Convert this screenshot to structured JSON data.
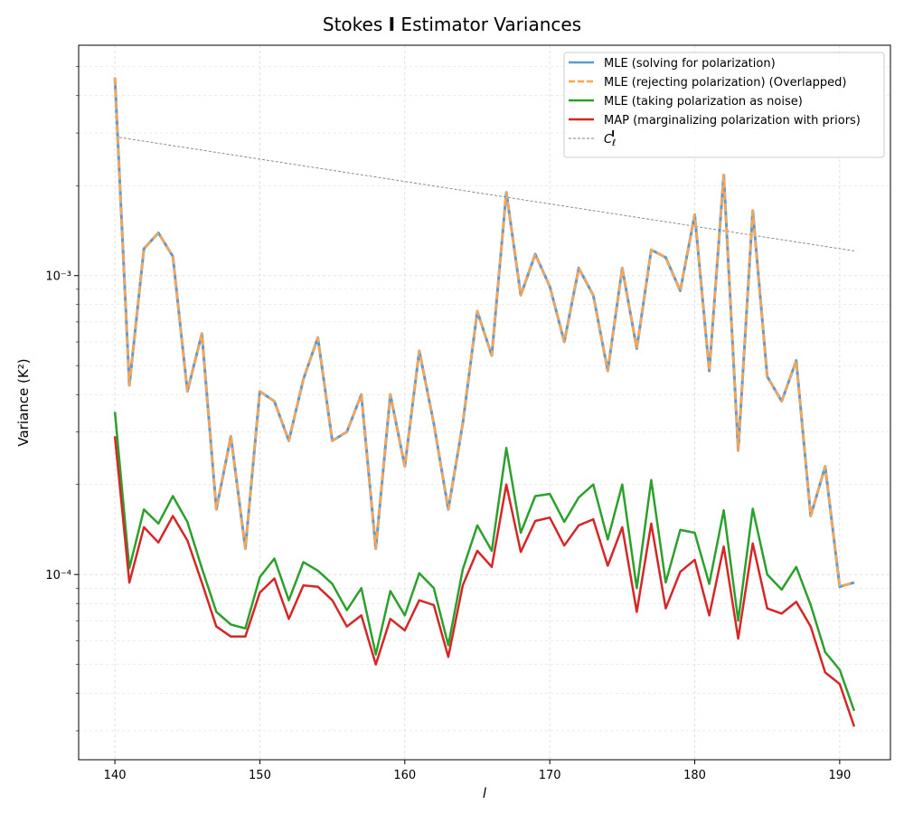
{
  "chart_data": {
    "type": "line",
    "title": "Stokes I Estimator Variances",
    "title_prefix": "Stokes ",
    "title_bold": "I",
    "title_suffix": " Estimator Variances",
    "xlabel": "l",
    "ylabel": "Variance (K²)",
    "xlim": [
      137.5,
      193.5
    ],
    "ylim": [
      2.4e-05,
      0.0059
    ],
    "y_scale": "log",
    "x_ticks": [
      140,
      150,
      160,
      170,
      180,
      190
    ],
    "y_ticks": [
      {
        "value": 0.0001,
        "label": "10⁻⁴"
      },
      {
        "value": 0.001,
        "label": "10⁻³"
      }
    ],
    "grid": true,
    "legend_position": "upper right",
    "x": [
      140,
      141,
      142,
      143,
      144,
      145,
      146,
      147,
      148,
      149,
      150,
      151,
      152,
      153,
      154,
      155,
      156,
      157,
      158,
      159,
      160,
      161,
      162,
      163,
      164,
      165,
      166,
      167,
      168,
      169,
      170,
      171,
      172,
      173,
      174,
      175,
      176,
      177,
      178,
      179,
      180,
      181,
      182,
      183,
      184,
      185,
      186,
      187,
      188,
      189,
      190,
      191
    ],
    "series": [
      {
        "name": "MLE (solving for polarization)",
        "color": "#5b9bd5",
        "dash": "solid",
        "values": [
          0.0046,
          0.00043,
          0.00123,
          0.00139,
          0.00116,
          0.00041,
          0.00064,
          0.000165,
          0.00029,
          0.000122,
          0.00041,
          0.00038,
          0.00028,
          0.00045,
          0.00062,
          0.00028,
          0.0003,
          0.0004,
          0.000122,
          0.0004,
          0.00023,
          0.00056,
          0.00032,
          0.000165,
          0.00032,
          0.00076,
          0.00054,
          0.0019,
          0.00086,
          0.00118,
          0.00092,
          0.0006,
          0.00106,
          0.00086,
          0.00048,
          0.00106,
          0.00057,
          0.00122,
          0.00115,
          0.00089,
          0.0016,
          0.00048,
          0.00217,
          0.00026,
          0.00165,
          0.00046,
          0.00038,
          0.00052,
          0.000157,
          0.00023,
          9.1e-05,
          9.4e-05
        ]
      },
      {
        "name": "MLE (rejecting polarization) (Overlapped)",
        "color": "#ffa54f",
        "dash": "dashed",
        "values": [
          0.0046,
          0.00043,
          0.00123,
          0.00139,
          0.00116,
          0.00041,
          0.00064,
          0.000165,
          0.00029,
          0.000122,
          0.00041,
          0.00038,
          0.00028,
          0.00045,
          0.00062,
          0.00028,
          0.0003,
          0.0004,
          0.000122,
          0.0004,
          0.00023,
          0.00056,
          0.00032,
          0.000165,
          0.00032,
          0.00076,
          0.00054,
          0.0019,
          0.00086,
          0.00118,
          0.00092,
          0.0006,
          0.00106,
          0.00086,
          0.00048,
          0.00106,
          0.00057,
          0.00122,
          0.00115,
          0.00089,
          0.0016,
          0.00048,
          0.00217,
          0.00026,
          0.00165,
          0.00046,
          0.00038,
          0.00052,
          0.000157,
          0.00023,
          9.1e-05,
          9.4e-05
        ]
      },
      {
        "name": "MLE (taking polarization as noise)",
        "color": "#2ca02c",
        "dash": "solid",
        "values": [
          0.00035,
          0.000105,
          0.000165,
          0.000148,
          0.000183,
          0.00015,
          0.000105,
          7.5e-05,
          6.8e-05,
          6.6e-05,
          9.8e-05,
          0.000113,
          8.2e-05,
          0.00011,
          0.000103,
          9.3e-05,
          7.6e-05,
          9e-05,
          5.4e-05,
          8.8e-05,
          7.3e-05,
          0.000101,
          9e-05,
          5.8e-05,
          0.000104,
          0.000146,
          0.00012,
          0.000265,
          0.000138,
          0.000183,
          0.000186,
          0.00015,
          0.000181,
          0.0002,
          0.000131,
          0.0002,
          9e-05,
          0.000207,
          9.4e-05,
          0.000141,
          0.000138,
          9.3e-05,
          0.000164,
          7e-05,
          0.000166,
          0.0001,
          8.9e-05,
          0.000106,
          7.9e-05,
          5.5e-05,
          4.8e-05,
          3.5e-05
        ]
      },
      {
        "name": "MAP (marginalizing polarization with priors)",
        "color": "#d62728",
        "dash": "solid",
        "values": [
          0.00029,
          9.4e-05,
          0.000144,
          0.000128,
          0.000157,
          0.00013,
          9.4e-05,
          6.7e-05,
          6.2e-05,
          6.2e-05,
          8.7e-05,
          9.7e-05,
          7.1e-05,
          9.2e-05,
          9.1e-05,
          8.2e-05,
          6.7e-05,
          7.3e-05,
          5e-05,
          7.1e-05,
          6.5e-05,
          8.2e-05,
          7.9e-05,
          5.3e-05,
          9.2e-05,
          0.00012,
          0.000106,
          0.0002,
          0.000119,
          0.000151,
          0.000155,
          0.000125,
          0.000146,
          0.000153,
          0.000107,
          0.000144,
          7.5e-05,
          0.000148,
          7.7e-05,
          0.000102,
          0.000112,
          7.3e-05,
          0.000124,
          6.1e-05,
          0.000127,
          7.7e-05,
          7.4e-05,
          8.1e-05,
          6.7e-05,
          4.7e-05,
          4.3e-05,
          3.1e-05
        ]
      }
    ],
    "reference_line": {
      "name": "C_l^I",
      "legend_label": "C",
      "legend_sub": "ℓ",
      "legend_sup": "I",
      "color": "#808080",
      "dash": "dashed",
      "x": [
        140.3,
        191
      ],
      "values": [
        0.0029,
        0.00121
      ]
    }
  }
}
